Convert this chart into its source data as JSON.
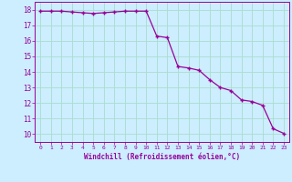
{
  "x": [
    0,
    1,
    2,
    3,
    4,
    5,
    6,
    7,
    8,
    9,
    10,
    11,
    12,
    13,
    14,
    15,
    16,
    17,
    18,
    19,
    20,
    21,
    22,
    23
  ],
  "y": [
    17.9,
    17.9,
    17.9,
    17.85,
    17.8,
    17.75,
    17.8,
    17.85,
    17.9,
    17.9,
    17.9,
    16.3,
    16.2,
    14.35,
    14.25,
    14.1,
    13.5,
    13.0,
    12.8,
    12.2,
    12.1,
    11.85,
    10.35,
    10.05
  ],
  "line_color": "#990099",
  "marker": "+",
  "marker_size": 4,
  "bg_color": "#cceeff",
  "grid_color": "#aaddcc",
  "xlabel": "Windchill (Refroidissement éolien,°C)",
  "xlim": [
    -0.5,
    23.5
  ],
  "ylim": [
    9.5,
    18.5
  ],
  "xticks": [
    0,
    1,
    2,
    3,
    4,
    5,
    6,
    7,
    8,
    9,
    10,
    11,
    12,
    13,
    14,
    15,
    16,
    17,
    18,
    19,
    20,
    21,
    22,
    23
  ],
  "yticks": [
    10,
    11,
    12,
    13,
    14,
    15,
    16,
    17,
    18
  ],
  "label_color": "#990099"
}
